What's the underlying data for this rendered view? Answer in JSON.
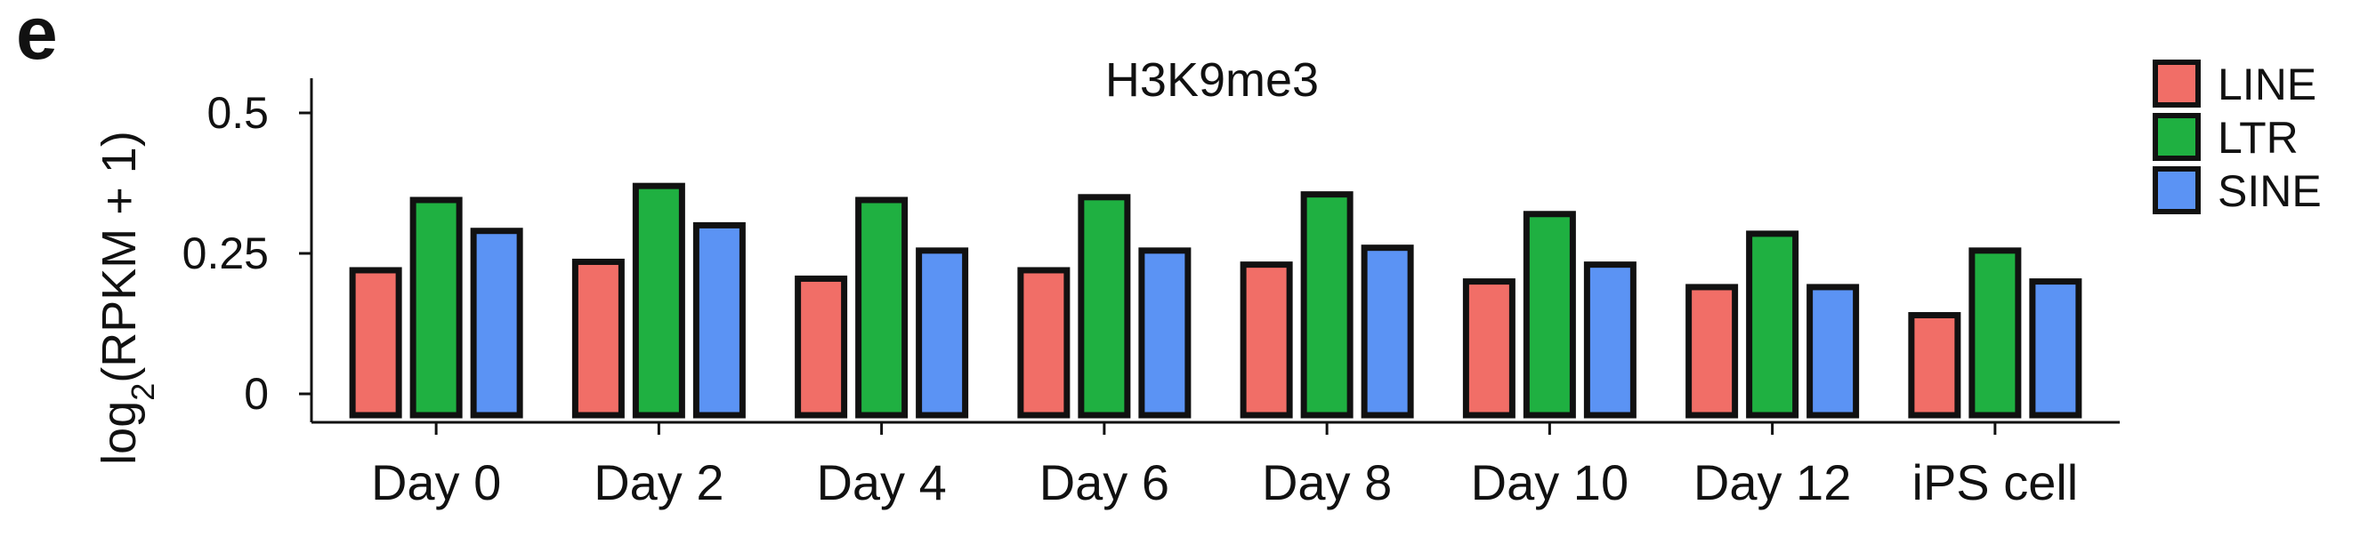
{
  "panel_letter": "e",
  "colors": {
    "LINE": "#f16e67",
    "LTR": "#1fb041",
    "SINE": "#5b93f4",
    "outline": "#111111"
  },
  "chart_data": {
    "type": "bar",
    "title": "H3K9me3",
    "ylabel": "log2(RPKM + 1)",
    "xlabel": "",
    "ylim": [
      0,
      0.55
    ],
    "yticks": [
      0,
      0.25,
      0.5
    ],
    "ytick_labels": [
      "0",
      "0.25",
      "0.5"
    ],
    "categories": [
      "Day 0",
      "Day 2",
      "Day 4",
      "Day 6",
      "Day 8",
      "Day 10",
      "Day 12",
      "iPS cell"
    ],
    "series": [
      {
        "name": "LINE",
        "values": [
          0.22,
          0.235,
          0.205,
          0.22,
          0.23,
          0.2,
          0.19,
          0.14
        ]
      },
      {
        "name": "LTR",
        "values": [
          0.345,
          0.37,
          0.345,
          0.35,
          0.355,
          0.32,
          0.285,
          0.255
        ]
      },
      {
        "name": "SINE",
        "values": [
          0.29,
          0.3,
          0.255,
          0.255,
          0.26,
          0.23,
          0.19,
          0.2
        ]
      }
    ],
    "legend_position": "top-right",
    "grid": false
  }
}
